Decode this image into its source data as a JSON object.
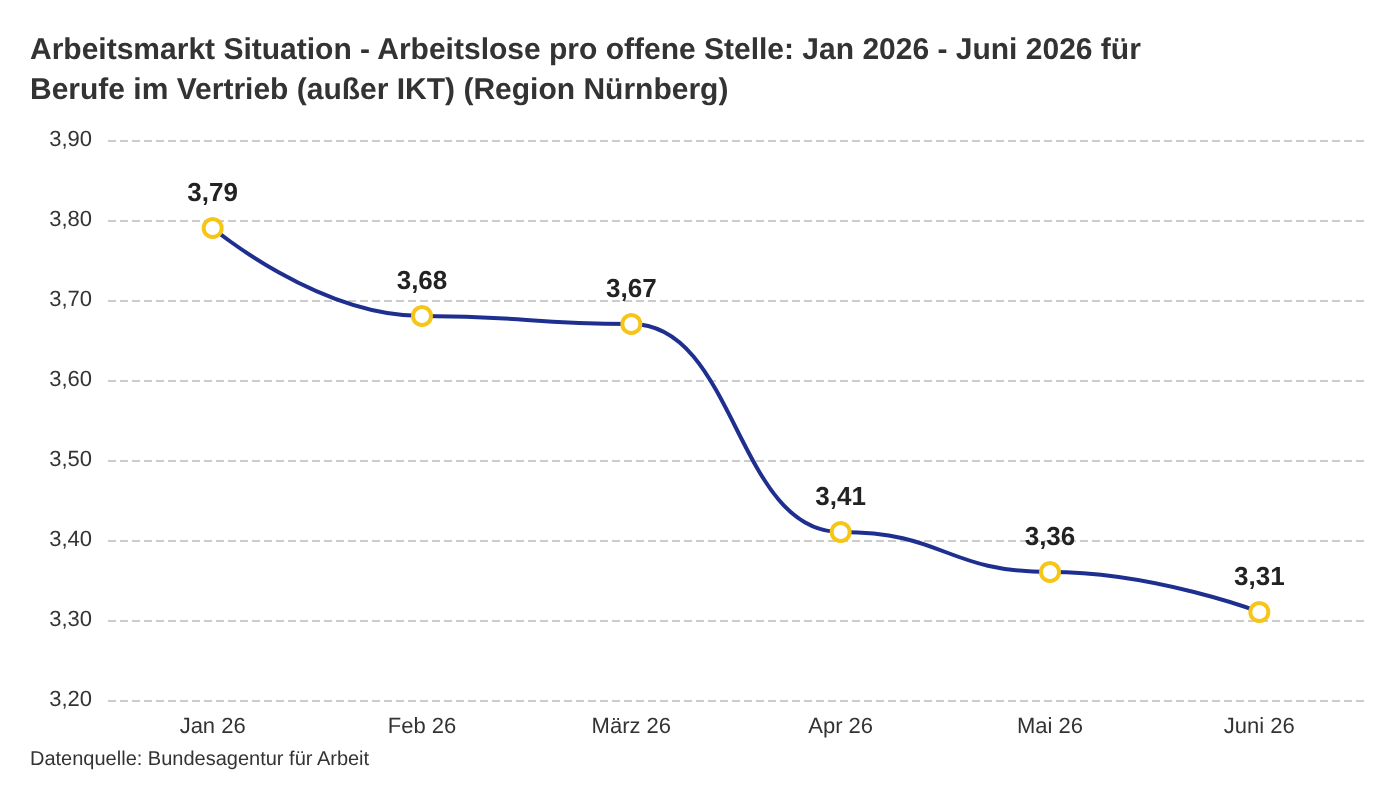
{
  "chart_data": {
    "type": "line",
    "title": "Arbeitsmarkt Situation - Arbeitslose pro offene Stelle: Jan 2026 - Juni 2026 für\nBerufe im Vertrieb (außer IKT) (Region Nürnberg)",
    "categories": [
      "Jan 26",
      "Feb 26",
      "März 26",
      "Apr 26",
      "Mai 26",
      "Juni 26"
    ],
    "series": [
      {
        "color": "#1f2f8f",
        "values": [
          3.79,
          3.68,
          3.67,
          3.41,
          3.36,
          3.31
        ],
        "value_labels": [
          "3,79",
          "3,68",
          "3,67",
          "3,41",
          "3,36",
          "3,31"
        ],
        "colors": [
          "#f5c518",
          "#f5c518",
          "#f5c518",
          "#f5c518",
          "#f5c518",
          "#f5c518"
        ]
      }
    ],
    "ylim": [
      3.2,
      3.9
    ],
    "yticks": [
      {
        "value": 3.2,
        "label": "3,20"
      },
      {
        "value": 3.3,
        "label": "3,30"
      },
      {
        "value": 3.4,
        "label": "3,40"
      },
      {
        "value": 3.5,
        "label": "3,50"
      },
      {
        "value": 3.6,
        "label": "3,60"
      },
      {
        "value": 3.7,
        "label": "3,70"
      },
      {
        "value": 3.8,
        "label": "3,80"
      },
      {
        "value": 3.9,
        "label": "3,90"
      }
    ],
    "grid": "y",
    "marker": "circle",
    "line_style": "solid",
    "annotations": [
      "Datenquelle: Bundesagentur für Arbeit"
    ]
  }
}
